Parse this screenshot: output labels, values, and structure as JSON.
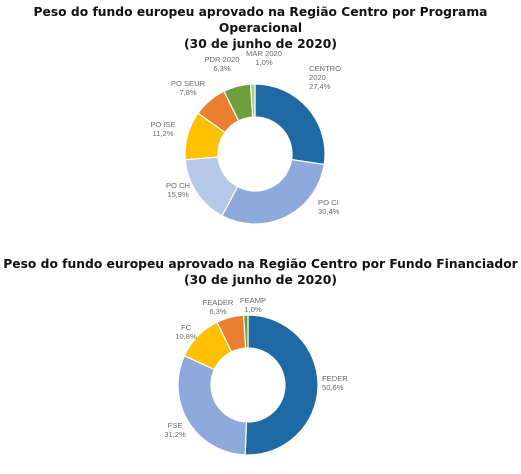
{
  "chart_data": [
    {
      "type": "pie",
      "title_line1": "Peso do fundo europeu aprovado na Região Centro por Programa Operacional",
      "title_line2": "(30 de junho de 2020)",
      "slices": [
        {
          "name": "CENTRO 2020",
          "value": 27.4,
          "display": "27,4%",
          "color": "#1f6aa5"
        },
        {
          "name": "PO CI",
          "value": 30.4,
          "display": "30,4%",
          "color": "#8eaadc"
        },
        {
          "name": "PO CH",
          "value": 15.9,
          "display": "15,9%",
          "color": "#b5c8e8"
        },
        {
          "name": "PO ISE",
          "value": 11.2,
          "display": "11,2%",
          "color": "#ffc000"
        },
        {
          "name": "PO SEUR",
          "value": 7.8,
          "display": "7,8%",
          "color": "#ed7d31"
        },
        {
          "name": "PDR 2020",
          "value": 6.3,
          "display": "6,3%",
          "color": "#6f9f3a"
        },
        {
          "name": "MAR 2020",
          "value": 1.0,
          "display": "1,0%",
          "color": "#a9d18e"
        }
      ]
    },
    {
      "type": "pie",
      "title_line1": "Peso do fundo europeu aprovado na Região Centro por Fundo Financiador",
      "title_line2": "(30 de junho de 2020)",
      "slices": [
        {
          "name": "FEDER",
          "value": 50.6,
          "display": "50,6%",
          "color": "#1f6aa5"
        },
        {
          "name": "FSE",
          "value": 31.2,
          "display": "31,2%",
          "color": "#8eaadc"
        },
        {
          "name": "FC",
          "value": 10.8,
          "display": "10,8%",
          "color": "#ffc000"
        },
        {
          "name": "FEADER",
          "value": 6.3,
          "display": "6,3%",
          "color": "#ed7d31"
        },
        {
          "name": "FEAMP",
          "value": 1.0,
          "display": "1,0%",
          "color": "#6f9f3a"
        }
      ]
    }
  ]
}
